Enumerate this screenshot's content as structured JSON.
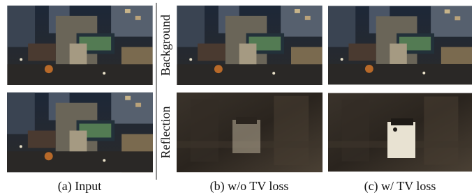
{
  "figure": {
    "row_labels": [
      "Background",
      "Reflection"
    ],
    "captions": [
      "(a) Input",
      "(b) w/o TV loss",
      "(c) w/ TV loss"
    ]
  }
}
